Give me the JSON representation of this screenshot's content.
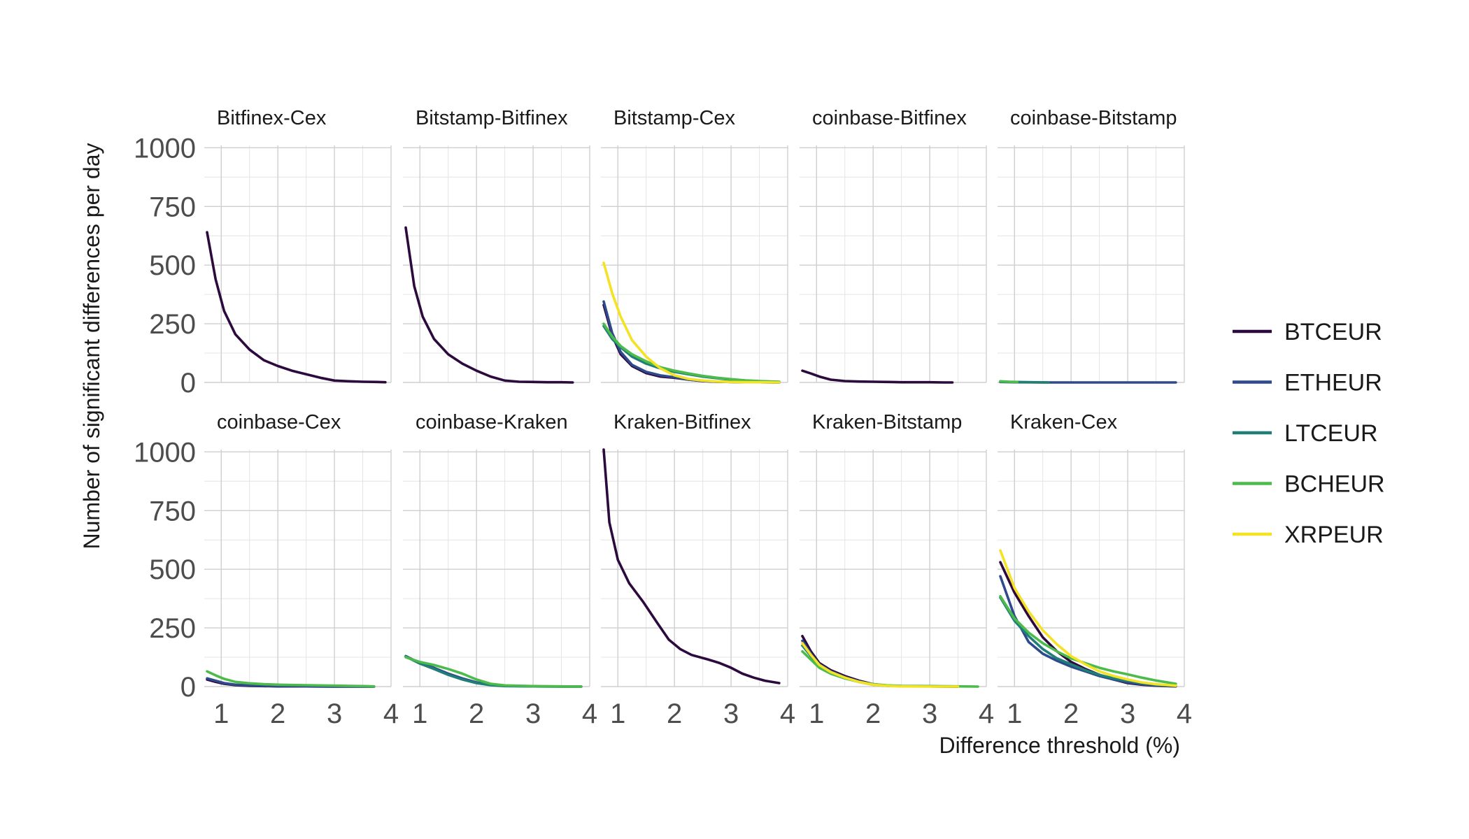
{
  "chart_data": {
    "type": "line",
    "xlabel": "Difference threshold (%)",
    "ylabel": "Number of significant differences per day",
    "xlim": [
      0.7,
      4.0
    ],
    "ylim": [
      0,
      1010
    ],
    "x_ticks": [
      1,
      2,
      3,
      4
    ],
    "y_ticks": [
      0,
      250,
      500,
      750,
      1000
    ],
    "grid": true,
    "legend_position": "right",
    "series_colors": {
      "BTCEUR": "#2d0a3e",
      "ETHEUR": "#2f4a8c",
      "LTCEUR": "#1f7f77",
      "BCHEUR": "#4cbb4c",
      "XRPEUR": "#f4e224"
    },
    "legend": [
      "BTCEUR",
      "ETHEUR",
      "LTCEUR",
      "BCHEUR",
      "XRPEUR"
    ],
    "panels": [
      {
        "title": "Bitfinex-Cex",
        "series": [
          {
            "name": "BTCEUR",
            "x": [
              0.75,
              0.9,
              1.05,
              1.25,
              1.5,
              1.75,
              2.0,
              2.25,
              2.5,
              2.75,
              3.0,
              3.25,
              3.5,
              3.75,
              3.9
            ],
            "y": [
              640,
              440,
              305,
              205,
              140,
              95,
              70,
              50,
              35,
              20,
              8,
              5,
              3,
              2,
              1
            ]
          }
        ]
      },
      {
        "title": "Bitstamp-Bitfinex",
        "series": [
          {
            "name": "BTCEUR",
            "x": [
              0.75,
              0.9,
              1.05,
              1.25,
              1.5,
              1.75,
              2.0,
              2.25,
              2.5,
              2.75,
              3.0,
              3.25,
              3.5,
              3.7
            ],
            "y": [
              660,
              410,
              280,
              185,
              120,
              80,
              50,
              25,
              8,
              3,
              2,
              1,
              1,
              0
            ]
          }
        ]
      },
      {
        "title": "Bitstamp-Cex",
        "series": [
          {
            "name": "BTCEUR",
            "x": [
              0.75,
              0.9,
              1.05,
              1.25,
              1.5,
              1.75,
              2.0,
              2.25,
              2.5,
              2.75,
              3.0,
              3.25,
              3.5,
              3.85
            ],
            "y": [
              330,
              200,
              120,
              70,
              40,
              25,
              20,
              12,
              6,
              3,
              2,
              1,
              1,
              0
            ]
          },
          {
            "name": "ETHEUR",
            "x": [
              0.75,
              0.9,
              1.05,
              1.25,
              1.5,
              1.75,
              2.0,
              2.25,
              2.5,
              2.75,
              3.0,
              3.25,
              3.5,
              3.85
            ],
            "y": [
              345,
              210,
              130,
              75,
              45,
              30,
              22,
              12,
              6,
              3,
              2,
              1,
              1,
              0
            ]
          },
          {
            "name": "LTCEUR",
            "x": [
              0.75,
              0.9,
              1.05,
              1.25,
              1.5,
              1.75,
              2.0,
              2.25,
              2.5,
              2.75,
              3.0,
              3.25,
              3.5,
              3.85
            ],
            "y": [
              240,
              185,
              150,
              110,
              80,
              60,
              45,
              35,
              25,
              18,
              12,
              8,
              5,
              2
            ]
          },
          {
            "name": "BCHEUR",
            "x": [
              0.75,
              0.9,
              1.05,
              1.25,
              1.5,
              1.75,
              2.0,
              2.25,
              2.5,
              2.75,
              3.0,
              3.25,
              3.5,
              3.85
            ],
            "y": [
              250,
              195,
              155,
              120,
              90,
              65,
              50,
              38,
              28,
              20,
              14,
              9,
              6,
              3
            ]
          },
          {
            "name": "XRPEUR",
            "x": [
              0.75,
              0.9,
              1.05,
              1.25,
              1.5,
              1.75,
              2.0,
              2.25,
              2.5,
              2.75,
              3.0,
              3.25,
              3.5,
              3.85
            ],
            "y": [
              510,
              380,
              280,
              180,
              110,
              60,
              30,
              15,
              8,
              4,
              2,
              1,
              1,
              0
            ]
          }
        ]
      },
      {
        "title": "coinbase-Bitfinex",
        "series": [
          {
            "name": "BTCEUR",
            "x": [
              0.75,
              0.9,
              1.05,
              1.25,
              1.5,
              1.75,
              2.0,
              2.25,
              2.5,
              2.75,
              3.0,
              3.25,
              3.4
            ],
            "y": [
              50,
              38,
              25,
              12,
              6,
              4,
              3,
              2,
              1,
              1,
              1,
              0,
              0
            ]
          }
        ]
      },
      {
        "title": "coinbase-Bitstamp",
        "series": [
          {
            "name": "ETHEUR",
            "x": [
              0.75,
              1.0,
              1.5,
              2.0,
              2.5,
              3.0,
              3.5,
              3.85
            ],
            "y": [
              2,
              1,
              0,
              0,
              0,
              0,
              0,
              0
            ]
          },
          {
            "name": "LTCEUR",
            "x": [
              0.75,
              1.0,
              1.3,
              1.6
            ],
            "y": [
              3,
              2,
              1,
              0
            ]
          },
          {
            "name": "BCHEUR",
            "x": [
              0.75,
              0.9,
              1.05
            ],
            "y": [
              5,
              3,
              2
            ]
          }
        ]
      },
      {
        "title": "coinbase-Cex",
        "series": [
          {
            "name": "BTCEUR",
            "x": [
              0.75,
              0.9,
              1.05,
              1.25,
              1.5,
              1.75,
              2.0,
              2.5,
              3.0,
              3.5,
              3.7
            ],
            "y": [
              30,
              20,
              12,
              6,
              3,
              2,
              1,
              1,
              0,
              0,
              0
            ]
          },
          {
            "name": "ETHEUR",
            "x": [
              0.75,
              0.9,
              1.05,
              1.25,
              1.5,
              1.75,
              2.0,
              2.5,
              3.0,
              3.5,
              3.7
            ],
            "y": [
              35,
              25,
              15,
              8,
              5,
              3,
              2,
              1,
              0,
              0,
              0
            ]
          },
          {
            "name": "BCHEUR",
            "x": [
              0.75,
              0.9,
              1.05,
              1.25,
              1.5,
              1.75,
              2.0,
              2.5,
              3.0,
              3.5,
              3.7
            ],
            "y": [
              65,
              48,
              33,
              20,
              14,
              10,
              8,
              6,
              4,
              2,
              1
            ]
          }
        ]
      },
      {
        "title": "coinbase-Kraken",
        "series": [
          {
            "name": "ETHEUR",
            "x": [
              0.75,
              1.0,
              1.25,
              1.5,
              1.75,
              2.0,
              2.25,
              2.5,
              3.0,
              3.5,
              3.85
            ],
            "y": [
              130,
              100,
              80,
              55,
              35,
              18,
              8,
              3,
              1,
              0,
              0
            ]
          },
          {
            "name": "LTCEUR",
            "x": [
              0.75,
              1.0,
              1.25,
              1.5,
              1.75,
              2.0,
              2.25,
              2.5,
              3.0,
              3.5,
              3.85
            ],
            "y": [
              128,
              98,
              75,
              50,
              30,
              15,
              6,
              2,
              1,
              0,
              0
            ]
          },
          {
            "name": "BCHEUR",
            "x": [
              0.75,
              1.0,
              1.25,
              1.5,
              1.75,
              2.0,
              2.25,
              2.5,
              3.0,
              3.5,
              3.85
            ],
            "y": [
              125,
              105,
              92,
              75,
              55,
              30,
              12,
              5,
              2,
              1,
              0
            ]
          }
        ]
      },
      {
        "title": "Kraken-Bitfinex",
        "series": [
          {
            "name": "BTCEUR",
            "x": [
              0.75,
              0.85,
              1.0,
              1.2,
              1.45,
              1.7,
              1.9,
              2.1,
              2.3,
              2.6,
              2.8,
              3.0,
              3.2,
              3.4,
              3.6,
              3.85
            ],
            "y": [
              1010,
              700,
              540,
              440,
              360,
              270,
              200,
              160,
              135,
              115,
              100,
              80,
              55,
              38,
              25,
              15
            ]
          }
        ]
      },
      {
        "title": "Kraken-Bitstamp",
        "series": [
          {
            "name": "BTCEUR",
            "x": [
              0.75,
              0.9,
              1.05,
              1.25,
              1.5,
              1.75,
              2.0,
              2.25,
              2.5,
              3.0,
              3.5
            ],
            "y": [
              215,
              150,
              100,
              70,
              45,
              25,
              10,
              4,
              2,
              1,
              0
            ]
          },
          {
            "name": "ETHEUR",
            "x": [
              0.75,
              0.9,
              1.05,
              1.25,
              1.5,
              1.75,
              2.0,
              2.25,
              2.5,
              3.0,
              3.5
            ],
            "y": [
              195,
              140,
              95,
              65,
              40,
              22,
              9,
              4,
              2,
              1,
              0
            ]
          },
          {
            "name": "LTCEUR",
            "x": [
              0.75,
              0.9,
              1.05,
              1.25,
              1.5,
              1.75,
              2.0,
              2.25,
              2.5,
              3.0,
              3.5
            ],
            "y": [
              175,
              130,
              90,
              60,
              38,
              20,
              8,
              3,
              2,
              1,
              0
            ]
          },
          {
            "name": "BCHEUR",
            "x": [
              0.75,
              0.9,
              1.05,
              1.25,
              1.5,
              1.75,
              2.0,
              2.25,
              2.5,
              3.0,
              3.5,
              3.85
            ],
            "y": [
              150,
              115,
              80,
              55,
              35,
              20,
              10,
              5,
              3,
              2,
              1,
              0
            ]
          },
          {
            "name": "XRPEUR",
            "x": [
              0.75,
              0.9,
              1.05,
              1.25,
              1.5,
              1.75,
              2.0,
              2.25,
              2.5,
              3.0,
              3.5
            ],
            "y": [
              185,
              135,
              92,
              62,
              38,
              20,
              8,
              3,
              1,
              0,
              0
            ]
          }
        ]
      },
      {
        "title": "Kraken-Cex",
        "series": [
          {
            "name": "BTCEUR",
            "x": [
              0.75,
              1.0,
              1.25,
              1.5,
              1.75,
              2.0,
              2.25,
              2.5,
              2.75,
              3.0,
              3.25,
              3.5,
              3.85
            ],
            "y": [
              530,
              400,
              300,
              210,
              150,
              105,
              75,
              50,
              30,
              15,
              8,
              4,
              1
            ]
          },
          {
            "name": "ETHEUR",
            "x": [
              0.75,
              1.0,
              1.25,
              1.5,
              1.75,
              2.0,
              2.25,
              2.5,
              2.75,
              3.0,
              3.25,
              3.5,
              3.85
            ],
            "y": [
              470,
              300,
              190,
              140,
              110,
              85,
              65,
              45,
              30,
              18,
              10,
              5,
              2
            ]
          },
          {
            "name": "LTCEUR",
            "x": [
              0.75,
              1.0,
              1.25,
              1.5,
              1.75,
              2.0,
              2.25,
              2.5,
              2.75,
              3.0,
              3.25,
              3.5,
              3.85
            ],
            "y": [
              380,
              280,
              215,
              160,
              120,
              95,
              70,
              50,
              35,
              25,
              15,
              8,
              3
            ]
          },
          {
            "name": "BCHEUR",
            "x": [
              0.75,
              1.0,
              1.25,
              1.5,
              1.75,
              2.0,
              2.25,
              2.5,
              2.75,
              3.0,
              3.25,
              3.5,
              3.85
            ],
            "y": [
              385,
              290,
              230,
              185,
              150,
              120,
              100,
              80,
              65,
              52,
              38,
              26,
              12
            ]
          },
          {
            "name": "XRPEUR",
            "x": [
              0.75,
              1.0,
              1.25,
              1.5,
              1.75,
              2.0,
              2.25,
              2.5,
              2.75,
              3.0,
              3.25,
              3.5,
              3.85
            ],
            "y": [
              580,
              420,
              320,
              240,
              180,
              130,
              95,
              65,
              45,
              30,
              18,
              10,
              4
            ]
          }
        ]
      }
    ]
  }
}
